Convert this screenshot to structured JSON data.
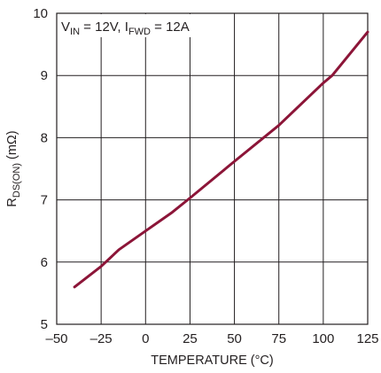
{
  "chart_data": {
    "type": "line",
    "title": "",
    "xlabel": "TEMPERATURE (°C)",
    "ylabel": {
      "main": "R",
      "sub": "DS(ON)",
      "unit": " (mΩ)"
    },
    "xlim": [
      -50,
      125
    ],
    "ylim": [
      5,
      10
    ],
    "xticks": [
      -50,
      -25,
      0,
      25,
      50,
      75,
      100,
      125
    ],
    "xtick_labels": [
      "–50",
      "–25",
      "0",
      "25",
      "50",
      "75",
      "100",
      "125"
    ],
    "yticks": [
      5,
      6,
      7,
      8,
      9,
      10
    ],
    "ytick_labels": [
      "5",
      "6",
      "7",
      "8",
      "9",
      "10"
    ],
    "grid": true,
    "legend": null,
    "annotation": {
      "v": "V",
      "v_sub": "IN",
      "v_val": " = 12V, ",
      "i": "I",
      "i_sub": "FWD",
      "i_val": " = 12A"
    },
    "series": [
      {
        "color": "#8c1538",
        "x": [
          -40,
          -25,
          -15,
          0,
          15,
          25,
          50,
          75,
          100,
          105,
          125
        ],
        "y": [
          5.6,
          5.93,
          6.2,
          6.5,
          6.8,
          7.03,
          7.62,
          8.2,
          8.88,
          9.0,
          9.7
        ]
      }
    ]
  }
}
